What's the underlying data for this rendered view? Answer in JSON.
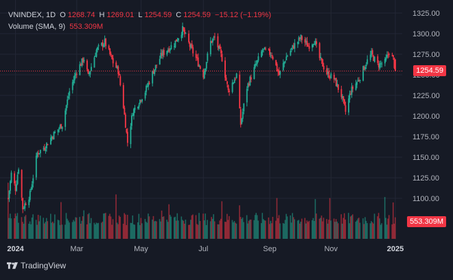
{
  "header": {
    "symbol": "VNINDEX, 1D",
    "o_label": "O",
    "o_value": "1268.74",
    "h_label": "H",
    "h_value": "1269.01",
    "l_label": "L",
    "l_value": "1254.59",
    "c_label": "C",
    "c_value": "1254.59",
    "change": "−15.12 (−1.19%)",
    "volume_label": "Volume (SMA, 9)",
    "volume_value": "553.309M"
  },
  "last_price_tag": "1254.59",
  "volume_tag": "553.309M",
  "brand": "TradingView",
  "colors": {
    "up": "#22ab94",
    "down": "#f23645",
    "background": "#161a25",
    "grid": "#232735"
  },
  "chart_data": {
    "type": "candlestick",
    "title": "VNINDEX, 1D",
    "y_ticks": [
      "1325.00",
      "1300.00",
      "1275.00",
      "1250.00",
      "1225.00",
      "1200.00",
      "1175.00",
      "1150.00",
      "1125.00",
      "1100.00"
    ],
    "x_ticks": [
      "2024",
      "Mar",
      "May",
      "Jul",
      "Sep",
      "Nov",
      "2025"
    ],
    "ylim": [
      1077,
      1330
    ],
    "last_close": 1254.59,
    "anchor_closes": [
      [
        "2023-12-26",
        1100
      ],
      [
        "2023-12-29",
        1129.9
      ],
      [
        "2024-01-02",
        1112
      ],
      [
        "2024-01-05",
        1138
      ],
      [
        "2024-01-09",
        1088
      ],
      [
        "2024-01-16",
        1105
      ],
      [
        "2024-01-23",
        1155
      ],
      [
        "2024-01-30",
        1162
      ],
      [
        "2024-02-06",
        1175
      ],
      [
        "2024-02-16",
        1190
      ],
      [
        "2024-02-23",
        1230
      ],
      [
        "2024-03-01",
        1255
      ],
      [
        "2024-03-08",
        1270
      ],
      [
        "2024-03-12",
        1248
      ],
      [
        "2024-03-20",
        1280
      ],
      [
        "2024-03-28",
        1290
      ],
      [
        "2024-04-05",
        1265
      ],
      [
        "2024-04-10",
        1255
      ],
      [
        "2024-04-15",
        1212
      ],
      [
        "2024-04-19",
        1168
      ],
      [
        "2024-04-24",
        1205
      ],
      [
        "2024-05-06",
        1230
      ],
      [
        "2024-05-14",
        1255
      ],
      [
        "2024-05-22",
        1275
      ],
      [
        "2024-06-03",
        1288
      ],
      [
        "2024-06-11",
        1305
      ],
      [
        "2024-06-18",
        1285
      ],
      [
        "2024-06-24",
        1270
      ],
      [
        "2024-07-01",
        1250
      ],
      [
        "2024-07-08",
        1290
      ],
      [
        "2024-07-12",
        1295
      ],
      [
        "2024-07-19",
        1270
      ],
      [
        "2024-07-25",
        1230
      ],
      [
        "2024-08-02",
        1250
      ],
      [
        "2024-08-06",
        1190
      ],
      [
        "2024-08-12",
        1235
      ],
      [
        "2024-08-20",
        1260
      ],
      [
        "2024-08-27",
        1280
      ],
      [
        "2024-09-05",
        1275
      ],
      [
        "2024-09-12",
        1250
      ],
      [
        "2024-09-19",
        1272
      ],
      [
        "2024-09-26",
        1285
      ],
      [
        "2024-10-03",
        1295
      ],
      [
        "2024-10-10",
        1285
      ],
      [
        "2024-10-16",
        1292
      ],
      [
        "2024-10-21",
        1270
      ],
      [
        "2024-10-28",
        1252
      ],
      [
        "2024-11-04",
        1245
      ],
      [
        "2024-11-11",
        1225
      ],
      [
        "2024-11-15",
        1205
      ],
      [
        "2024-11-20",
        1230
      ],
      [
        "2024-11-28",
        1245
      ],
      [
        "2024-12-05",
        1265
      ],
      [
        "2024-12-10",
        1275
      ],
      [
        "2024-12-16",
        1262
      ],
      [
        "2024-12-23",
        1265
      ],
      [
        "2024-12-27",
        1278
      ],
      [
        "2024-12-31",
        1268.74
      ],
      [
        "2025-01-02",
        1254.59
      ]
    ]
  }
}
